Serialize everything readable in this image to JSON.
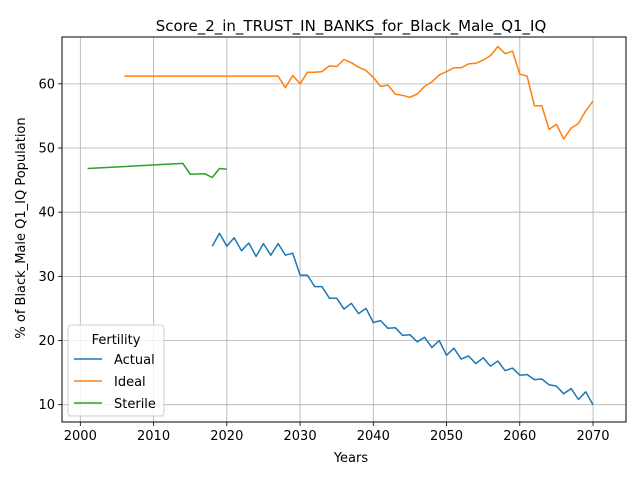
{
  "chart_data": {
    "type": "line",
    "title": "Score_2_in_TRUST_IN_BANKS_for_Black_Male_Q1_IQ",
    "xlabel": "Years",
    "ylabel": "% of Black_Male Q1_IQ Population",
    "xlim": [
      1997.5,
      2074.5
    ],
    "ylim": [
      7.3,
      67.3
    ],
    "xticks": [
      2000,
      2010,
      2020,
      2030,
      2040,
      2050,
      2060,
      2070
    ],
    "yticks": [
      10,
      20,
      30,
      40,
      50,
      60
    ],
    "grid": true,
    "legend": {
      "title": "Fertility",
      "placement": "lower-left"
    },
    "series": [
      {
        "name": "Actual",
        "color": "#1f77b4",
        "x": [
          2018,
          2019,
          2020,
          2021,
          2022,
          2023,
          2024,
          2025,
          2026,
          2027,
          2028,
          2029,
          2030,
          2031,
          2032,
          2033,
          2034,
          2035,
          2036,
          2037,
          2038,
          2039,
          2040,
          2041,
          2042,
          2043,
          2044,
          2045,
          2046,
          2047,
          2048,
          2049,
          2050,
          2051,
          2052,
          2053,
          2054,
          2055,
          2056,
          2057,
          2058,
          2059,
          2060,
          2061,
          2062,
          2063,
          2064,
          2065,
          2066,
          2067,
          2068,
          2069,
          2070
        ],
        "y": [
          34.7,
          36.7,
          34.7,
          36.0,
          34.0,
          35.2,
          33.1,
          35.1,
          33.3,
          35.1,
          33.3,
          33.6,
          30.2,
          30.2,
          28.4,
          28.4,
          26.6,
          26.6,
          24.9,
          25.8,
          24.2,
          25.0,
          22.8,
          23.1,
          21.9,
          22.0,
          20.8,
          20.9,
          19.8,
          20.5,
          18.9,
          20.0,
          17.7,
          18.8,
          17.1,
          17.6,
          16.4,
          17.3,
          16.0,
          16.8,
          15.3,
          15.7,
          14.6,
          14.7,
          13.9,
          14.0,
          13.1,
          12.9,
          11.7,
          12.5,
          10.8,
          12.0,
          10.0
        ]
      },
      {
        "name": "Ideal",
        "color": "#ff7f0e",
        "x": [
          2006,
          2027,
          2028,
          2029,
          2030,
          2031,
          2032,
          2033,
          2034,
          2035,
          2036,
          2037,
          2038,
          2039,
          2040,
          2041,
          2042,
          2043,
          2044,
          2045,
          2046,
          2047,
          2048,
          2049,
          2050,
          2051,
          2052,
          2053,
          2054,
          2055,
          2056,
          2057,
          2058,
          2059,
          2060,
          2061,
          2062,
          2063,
          2064,
          2065,
          2066,
          2067,
          2068,
          2069,
          2070
        ],
        "y": [
          61.2,
          61.2,
          59.4,
          61.3,
          60.0,
          61.8,
          61.8,
          61.9,
          62.8,
          62.7,
          63.8,
          63.3,
          62.6,
          62.1,
          61.0,
          59.6,
          59.8,
          58.4,
          58.2,
          57.9,
          58.4,
          59.6,
          60.3,
          61.4,
          61.9,
          62.5,
          62.5,
          63.1,
          63.2,
          63.7,
          64.4,
          65.8,
          64.7,
          65.1,
          61.5,
          61.2,
          56.6,
          56.6,
          52.9,
          53.7,
          51.4,
          53.1,
          53.8,
          55.8,
          57.3
        ]
      },
      {
        "name": "Sterile",
        "color": "#2ca02c",
        "x": [
          2001,
          2014,
          2015,
          2017,
          2018,
          2019,
          2020
        ],
        "y": [
          46.8,
          47.6,
          45.9,
          46.0,
          45.4,
          46.8,
          46.7
        ]
      }
    ]
  }
}
